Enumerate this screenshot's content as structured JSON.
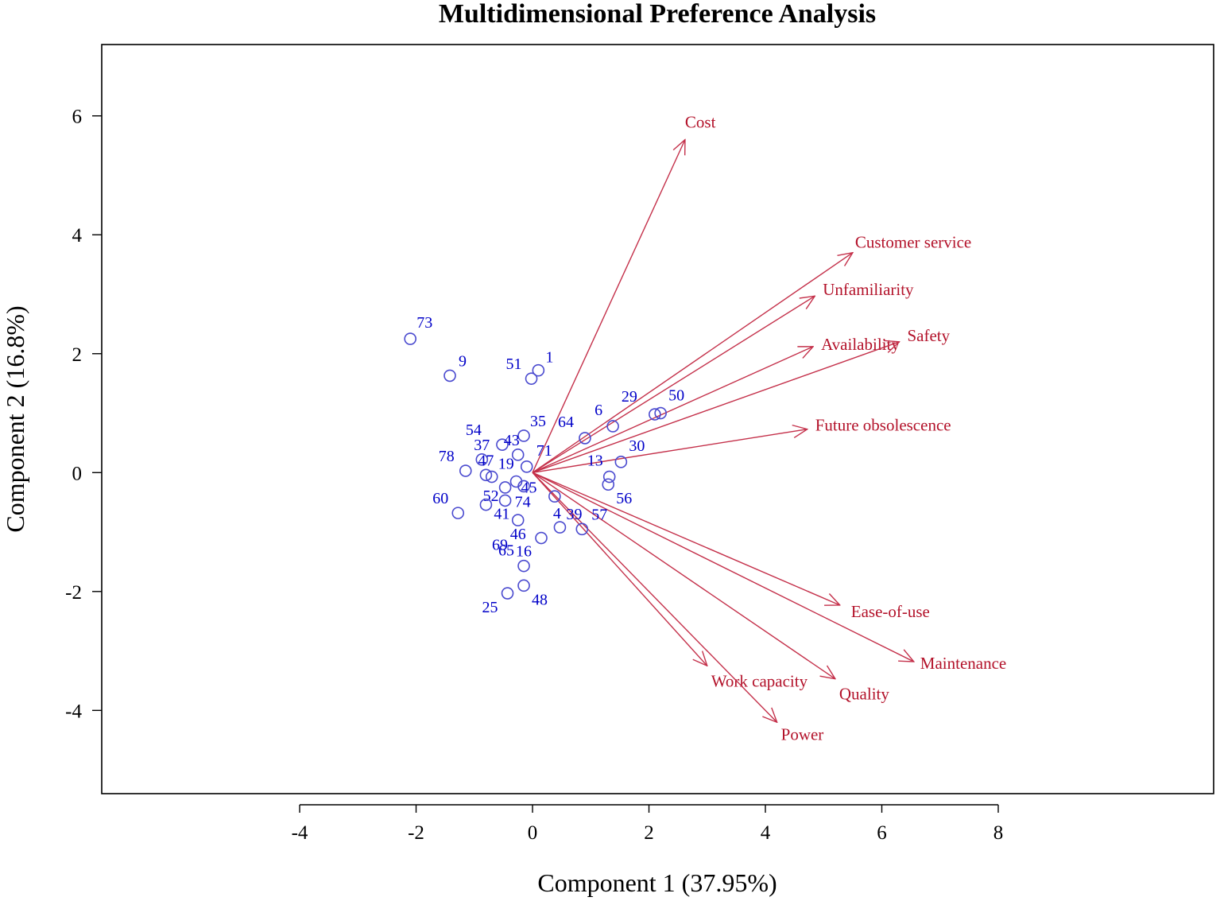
{
  "chart_data": {
    "type": "scatter",
    "subtype": "biplot",
    "title": "Multidimensional Preference Analysis",
    "xlabel": "Component 1 (37.95%)",
    "ylabel": "Component 2 (16.8%)",
    "xlim": [
      -7.4,
      11.7
    ],
    "ylim": [
      -5.4,
      7.2
    ],
    "xticks": [
      -4,
      -2,
      0,
      2,
      4,
      6,
      8
    ],
    "yticks": [
      -4,
      -2,
      0,
      2,
      4,
      6
    ],
    "grid": false,
    "points": [
      {
        "label": "73",
        "x": -2.1,
        "y": 2.25
      },
      {
        "label": "9",
        "x": -1.42,
        "y": 1.63
      },
      {
        "label": "51",
        "x": -0.02,
        "y": 1.58
      },
      {
        "label": "1",
        "x": 0.1,
        "y": 1.72
      },
      {
        "label": "6",
        "x": 1.38,
        "y": 0.78
      },
      {
        "label": "64",
        "x": 0.9,
        "y": 0.58
      },
      {
        "label": "29",
        "x": 2.1,
        "y": 0.98
      },
      {
        "label": "50",
        "x": 2.2,
        "y": 1.0
      },
      {
        "label": "35",
        "x": -0.15,
        "y": 0.62
      },
      {
        "label": "54",
        "x": -0.52,
        "y": 0.47
      },
      {
        "label": "43",
        "x": -0.25,
        "y": 0.3
      },
      {
        "label": "37",
        "x": -0.87,
        "y": 0.22
      },
      {
        "label": "71",
        "x": -0.1,
        "y": 0.1
      },
      {
        "label": "30",
        "x": 1.52,
        "y": 0.18
      },
      {
        "label": "78",
        "x": -1.15,
        "y": 0.03
      },
      {
        "label": "47",
        "x": -0.8,
        "y": -0.04
      },
      {
        "label": "19",
        "x": -0.7,
        "y": -0.07
      },
      {
        "label": "13",
        "x": 1.32,
        "y": -0.07
      },
      {
        "label": "45",
        "x": -0.28,
        "y": -0.15
      },
      {
        "label": "52",
        "x": -0.47,
        "y": -0.25
      },
      {
        "label": "56",
        "x": 1.3,
        "y": -0.2
      },
      {
        "label": "60",
        "x": -1.28,
        "y": -0.68
      },
      {
        "label": "74",
        "x": -0.47,
        "y": -0.47
      },
      {
        "label": "41",
        "x": -0.8,
        "y": -0.54
      },
      {
        "label": "46",
        "x": -0.25,
        "y": -0.8
      },
      {
        "label": "4",
        "x": 0.38,
        "y": -0.4
      },
      {
        "label": "39",
        "x": 0.47,
        "y": -0.92
      },
      {
        "label": "57",
        "x": 0.85,
        "y": -0.95
      },
      {
        "label": "69",
        "x": -0.15,
        "y": -0.23
      },
      {
        "label": "65",
        "x": 0.15,
        "y": -1.1
      },
      {
        "label": "16",
        "x": -0.15,
        "y": -1.57
      },
      {
        "label": "25",
        "x": -0.43,
        "y": -2.03
      },
      {
        "label": "48",
        "x": -0.15,
        "y": -1.9
      }
    ],
    "vectors": [
      {
        "label": "Cost",
        "x": 2.62,
        "y": 5.6
      },
      {
        "label": "Customer service",
        "x": 5.5,
        "y": 3.7
      },
      {
        "label": "Unfamiliarity",
        "x": 4.85,
        "y": 2.97
      },
      {
        "label": "Availability",
        "x": 4.82,
        "y": 2.12
      },
      {
        "label": "Safety",
        "x": 6.3,
        "y": 2.2
      },
      {
        "label": "Future obsolescence",
        "x": 4.72,
        "y": 0.73
      },
      {
        "label": "Ease-of-use",
        "x": 5.28,
        "y": -2.23
      },
      {
        "label": "Maintenance",
        "x": 6.55,
        "y": -3.18
      },
      {
        "label": "Work capacity",
        "x": 3.0,
        "y": -3.25
      },
      {
        "label": "Quality",
        "x": 5.2,
        "y": -3.47
      },
      {
        "label": "Power",
        "x": 4.2,
        "y": -4.2
      }
    ],
    "colors": {
      "points": "#4a4acf",
      "point_labels": "#0000c8",
      "vectors": "#c4304a",
      "vector_labels": "#b3122a"
    }
  }
}
